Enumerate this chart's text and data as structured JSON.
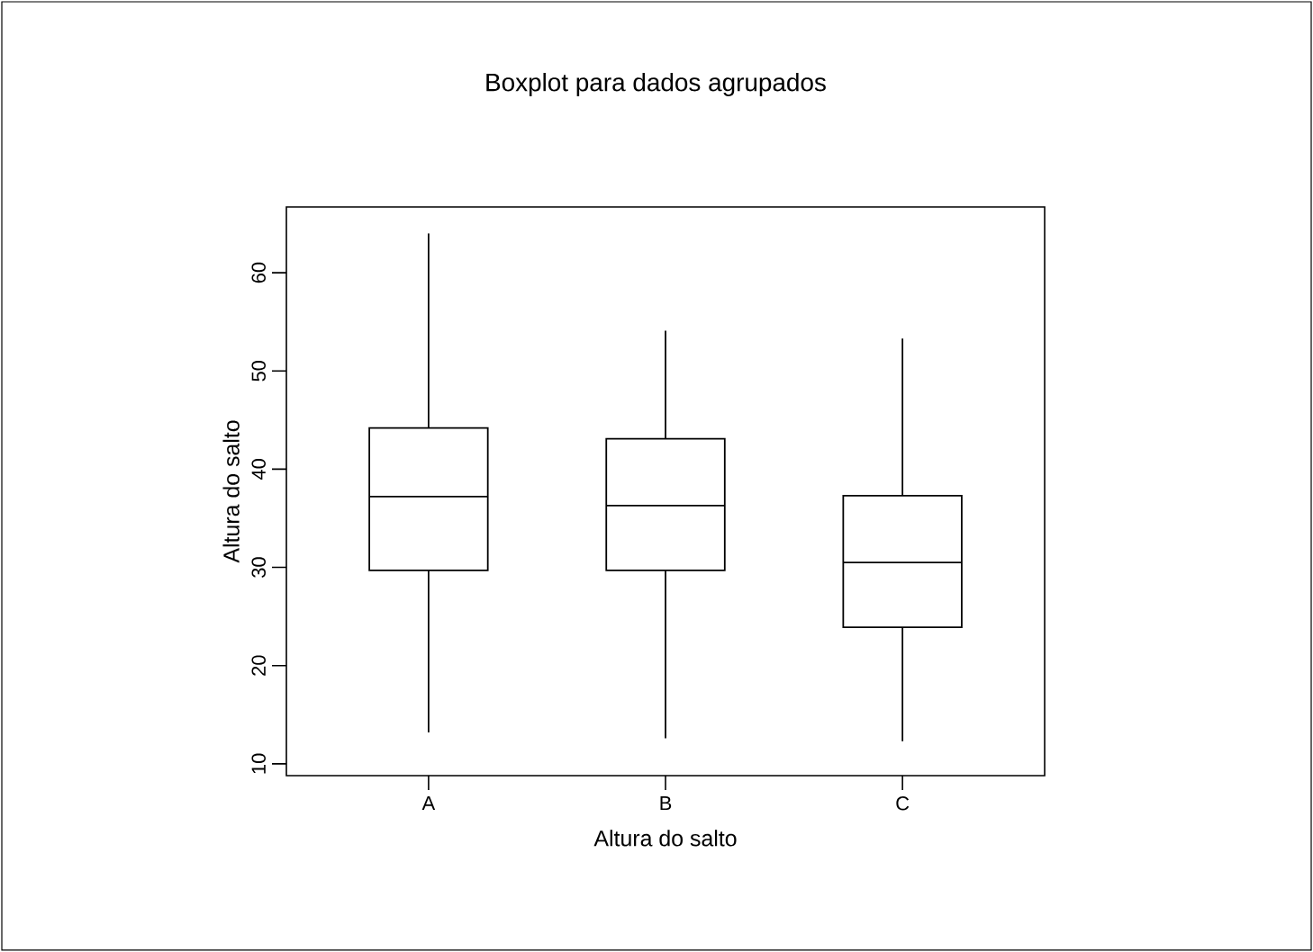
{
  "chart_data": {
    "type": "box",
    "title": "Boxplot para dados agrupados",
    "xlabel": "Altura do salto",
    "ylabel": "Altura do salto",
    "categories": [
      "A",
      "B",
      "C"
    ],
    "boxes": [
      {
        "low": 13.2,
        "q1": 29.7,
        "median": 37.2,
        "q3": 44.2,
        "high": 64
      },
      {
        "low": 12.6,
        "q1": 29.7,
        "median": 36.3,
        "q3": 43.1,
        "high": 54.1
      },
      {
        "low": 12.3,
        "q1": 23.9,
        "median": 30.5,
        "q3": 37.3,
        "high": 53.3
      }
    ],
    "ylim": [
      8.8,
      66.7
    ],
    "yticks": [
      10,
      20,
      30,
      40,
      50,
      60
    ]
  }
}
